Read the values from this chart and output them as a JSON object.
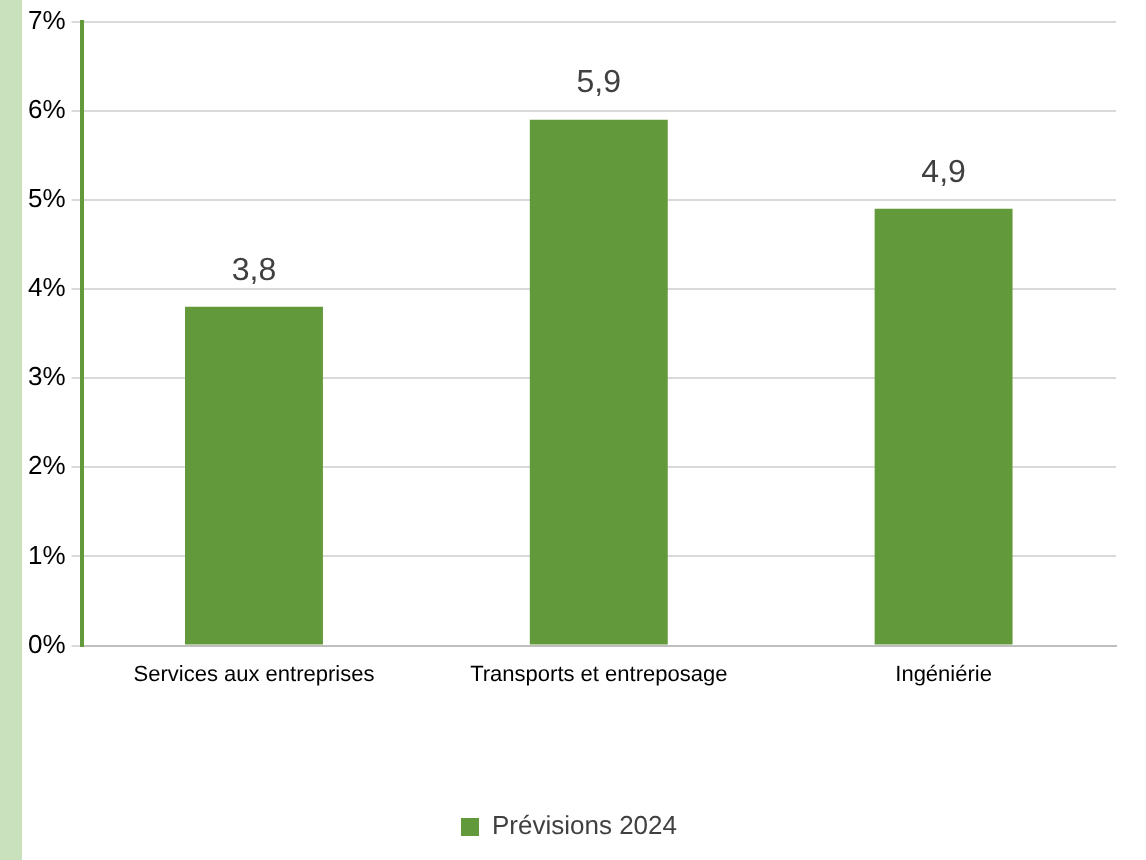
{
  "chart_data": {
    "type": "bar",
    "categories": [
      "Services aux entreprises",
      "Transports et entreposage",
      "Ingéniérie"
    ],
    "series": [
      {
        "name": "Prévisions 2024",
        "color": "#629a3b",
        "values": [
          3.8,
          5.9,
          4.9
        ],
        "value_labels": [
          "3,8",
          "5,9",
          "4,9"
        ]
      }
    ],
    "ylim": [
      0,
      7
    ],
    "yticks": [
      {
        "value": 0,
        "label": "0%"
      },
      {
        "value": 1,
        "label": "1%"
      },
      {
        "value": 2,
        "label": "2%"
      },
      {
        "value": 3,
        "label": "3%"
      },
      {
        "value": 4,
        "label": "4%"
      },
      {
        "value": 5,
        "label": "5%"
      },
      {
        "value": 6,
        "label": "6%"
      },
      {
        "value": 7,
        "label": "7%"
      }
    ],
    "grid": "y",
    "legend": "bottom"
  }
}
